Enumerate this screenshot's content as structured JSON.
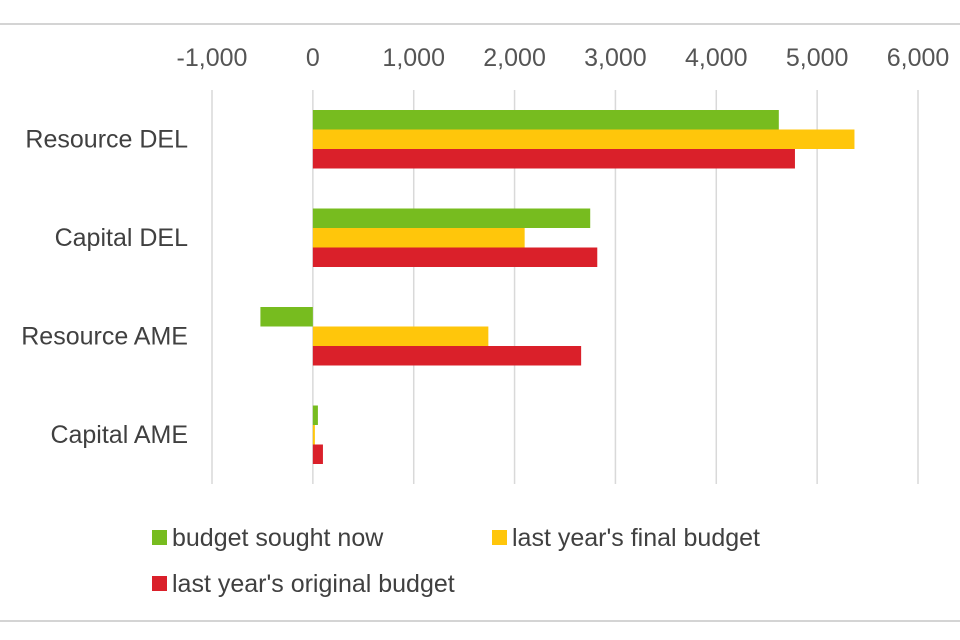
{
  "chart_data": {
    "type": "bar",
    "orientation": "horizontal",
    "title": "",
    "xlabel": "",
    "ylabel": "",
    "xlim": [
      -1000,
      6000
    ],
    "x_ticks": [
      -1000,
      0,
      1000,
      2000,
      3000,
      4000,
      5000,
      6000
    ],
    "x_tick_labels": [
      "-1,000",
      "0",
      "1,000",
      "2,000",
      "3,000",
      "4,000",
      "5,000",
      "6,000"
    ],
    "x_axis_position": "top",
    "grid": "vertical",
    "categories": [
      "Resource DEL",
      "Capital DEL",
      "Resource AME",
      "Capital AME"
    ],
    "series": [
      {
        "name": "budget sought now",
        "color": "#77BC1F",
        "values": [
          4620,
          2750,
          -520,
          50
        ]
      },
      {
        "name": "last year's final budget",
        "color": "#FFC60B",
        "values": [
          5370,
          2100,
          1740,
          20
        ]
      },
      {
        "name": "last year's original budget",
        "color": "#DA202A",
        "values": [
          4780,
          2820,
          2660,
          100
        ]
      }
    ],
    "legend_position": "bottom"
  }
}
